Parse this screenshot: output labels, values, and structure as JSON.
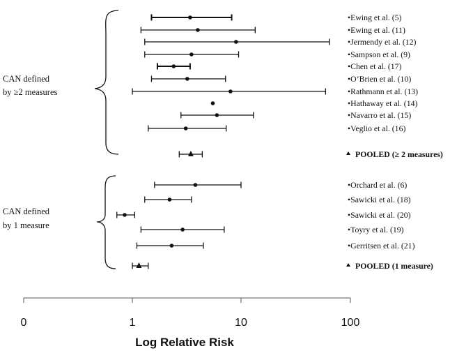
{
  "chart_data": {
    "type": "forest",
    "xlabel": "Log Relative Risk",
    "x_scale": "log",
    "x_ticks": [
      "0",
      "1",
      "10",
      "100"
    ],
    "groups": [
      {
        "label_line1": "CAN defined",
        "label_line2": "by ≥2 measures",
        "studies": [
          {
            "name": "•Ewing et al. (5)",
            "rr": 3.4,
            "low": 1.5,
            "high": 8.2
          },
          {
            "name": "•Ewing et al. (11)",
            "rr": 4.0,
            "low": 1.2,
            "high": 13.5
          },
          {
            "name": "•Jermendy et al. (12)",
            "rr": 9.0,
            "low": 1.3,
            "high": 65.0
          },
          {
            "name": "•Sampson et al. (9)",
            "rr": 3.5,
            "low": 1.3,
            "high": 9.5
          },
          {
            "name": "•Chen et al. (17)",
            "rr": 2.4,
            "low": 1.7,
            "high": 3.4
          },
          {
            "name": "•O’Brien et al. (10)",
            "rr": 3.2,
            "low": 1.5,
            "high": 7.2
          },
          {
            "name": "•Rathmann et al. (13)",
            "rr": 8.0,
            "low": 1.0,
            "high": 60.0
          },
          {
            "name": "•Hathaway et al. (14)",
            "rr": 5.5,
            "low": 5.5,
            "high": 5.5
          },
          {
            "name": "•Navarro et al. (15)",
            "rr": 6.0,
            "low": 2.8,
            "high": 13.0
          },
          {
            "name": "•Veglio et al. (16)",
            "rr": 3.1,
            "low": 1.4,
            "high": 7.3
          }
        ],
        "pooled": {
          "name": "POOLED (≥ 2 measures)",
          "rr": 3.45,
          "low": 2.7,
          "high": 4.4
        }
      },
      {
        "label_line1": "CAN defined",
        "label_line2": "by 1 measure",
        "studies": [
          {
            "name": "•Orchard et al. (6)",
            "rr": 3.8,
            "low": 1.6,
            "high": 10.0
          },
          {
            "name": "•Sawicki et al. (18)",
            "rr": 2.2,
            "low": 1.3,
            "high": 3.5
          },
          {
            "name": "•Sawicki et al. (20)",
            "rr": 0.85,
            "low": 0.72,
            "high": 1.05
          },
          {
            "name": "•Toyry et al. (19)",
            "rr": 2.9,
            "low": 1.2,
            "high": 7.0
          },
          {
            "name": "•Gerritsen et al. (21)",
            "rr": 2.3,
            "low": 1.1,
            "high": 4.5
          }
        ],
        "pooled": {
          "name": "POOLED (1 measure)",
          "rr": 1.15,
          "low": 1.0,
          "high": 1.4
        }
      }
    ]
  }
}
